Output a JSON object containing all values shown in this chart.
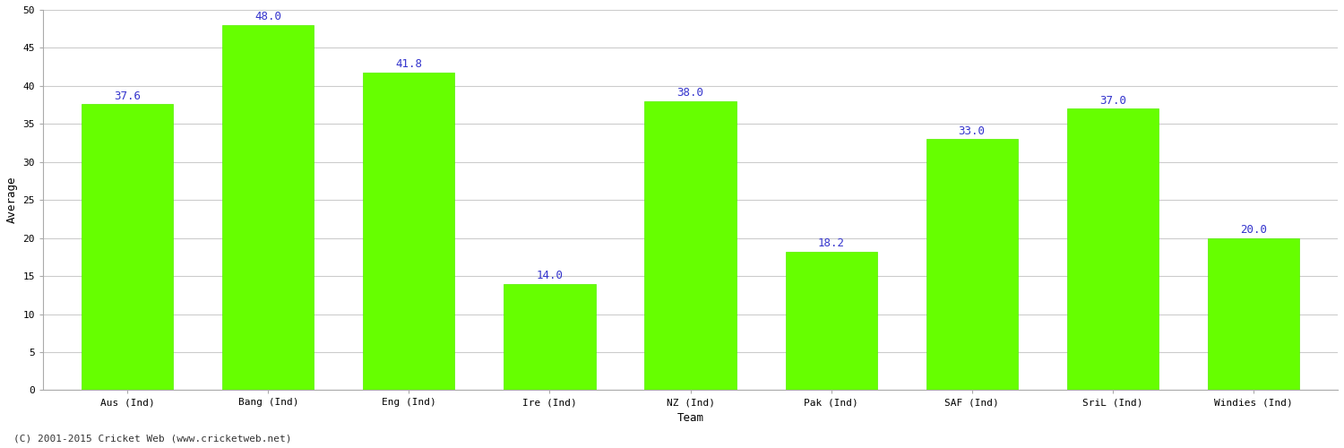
{
  "categories": [
    "Aus (Ind)",
    "Bang (Ind)",
    "Eng (Ind)",
    "Ire (Ind)",
    "NZ (Ind)",
    "Pak (Ind)",
    "SAF (Ind)",
    "SriL (Ind)",
    "Windies (Ind)"
  ],
  "values": [
    37.6,
    48.0,
    41.8,
    14.0,
    38.0,
    18.2,
    33.0,
    37.0,
    20.0
  ],
  "bar_color": "#66ff00",
  "bar_edge_color": "#55ee00",
  "label_color": "#3333cc",
  "xlabel": "Team",
  "ylabel": "Average",
  "ylim": [
    0,
    50
  ],
  "yticks": [
    0,
    5,
    10,
    15,
    20,
    25,
    30,
    35,
    40,
    45,
    50
  ],
  "grid_color": "#cccccc",
  "background_color": "#ffffff",
  "label_fontsize": 9,
  "axis_label_fontsize": 9,
  "tick_fontsize": 8,
  "footer_text": "(C) 2001-2015 Cricket Web (www.cricketweb.net)"
}
